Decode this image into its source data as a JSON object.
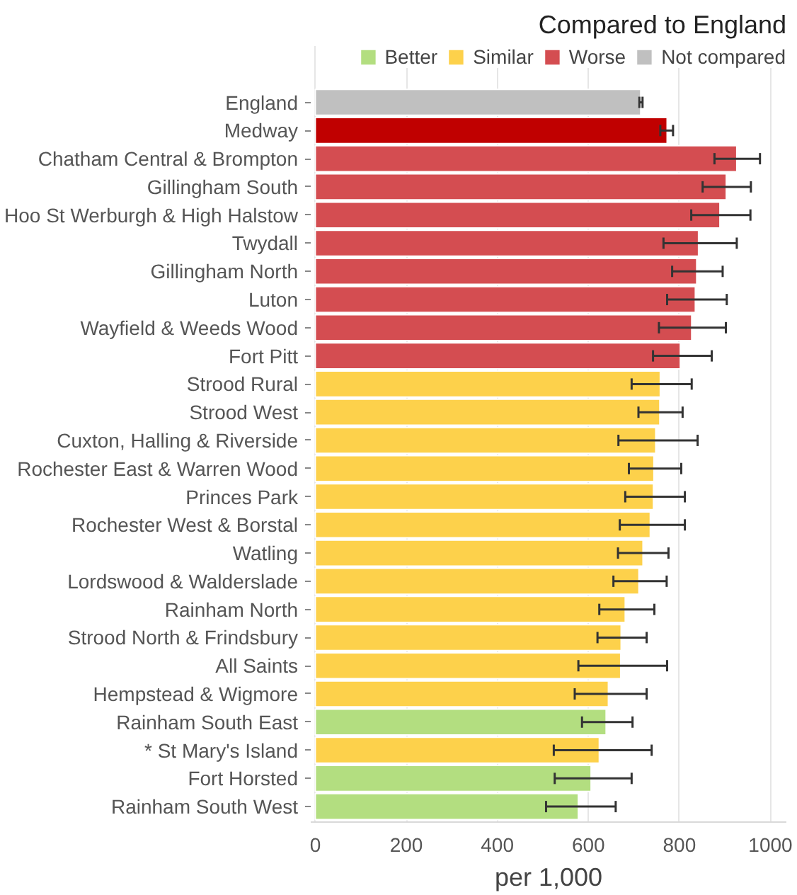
{
  "chart_data": {
    "type": "bar",
    "orientation": "horizontal",
    "xlabel": "per 1,000",
    "legend_title": "Compared to England",
    "legend": "top right",
    "grid": "x",
    "xlim": [
      -10,
      1035
    ],
    "xticks": [
      0,
      200,
      400,
      600,
      800,
      {
        "value": 1000,
        "label": "1000"
      }
    ],
    "categories": [
      "England",
      "Medway",
      "Chatham Central & Brompton",
      "Gillingham South",
      "Hoo St Werburgh & High Halstow",
      "Twydall",
      "Gillingham North",
      "Luton",
      "Wayfield & Weeds Wood",
      "Fort Pitt",
      "Strood Rural",
      "Strood West",
      "Cuxton, Halling & Riverside",
      "Rochester East & Warren Wood",
      "Princes Park",
      "Rochester West & Borstal",
      "Watling",
      "Lordswood & Walderslade",
      "Rainham North",
      "Strood North & Frindsbury",
      "All Saints",
      "Hempstead & Wigmore",
      "Rainham South East",
      "* St Mary's Island",
      "Fort Horsted",
      "Rainham South West"
    ],
    "series": [
      {
        "name": "Better",
        "color": "#b3de80",
        "values": [
          null,
          null,
          null,
          null,
          null,
          null,
          null,
          null,
          null,
          null,
          null,
          null,
          null,
          null,
          null,
          null,
          null,
          null,
          null,
          null,
          null,
          null,
          639,
          null,
          606,
          578
        ],
        "errors": [
          null,
          null,
          null,
          null,
          null,
          null,
          null,
          null,
          null,
          null,
          null,
          null,
          null,
          null,
          null,
          null,
          null,
          null,
          null,
          null,
          null,
          null,
          [
            586,
            697
          ],
          null,
          [
            526,
            695
          ],
          [
            507,
            660
          ]
        ]
      },
      {
        "name": "Similar",
        "color": "#fdd14b",
        "values": [
          null,
          null,
          null,
          null,
          null,
          null,
          null,
          null,
          null,
          null,
          758,
          757,
          748,
          744,
          743,
          736,
          720,
          711,
          681,
          672,
          671,
          644,
          null,
          624,
          null,
          null
        ],
        "errors": [
          null,
          null,
          null,
          null,
          null,
          null,
          null,
          null,
          null,
          null,
          [
            695,
            827
          ],
          [
            710,
            807
          ],
          [
            666,
            840
          ],
          [
            689,
            804
          ],
          [
            681,
            812
          ],
          [
            669,
            812
          ],
          [
            665,
            776
          ],
          [
            655,
            772
          ],
          [
            624,
            745
          ],
          [
            620,
            728
          ],
          [
            578,
            773
          ],
          [
            570,
            728
          ],
          null,
          [
            524,
            739
          ],
          null,
          null
        ]
      },
      {
        "name": "Worse",
        "color": "#d44d51",
        "values": [
          null,
          null,
          926,
          903,
          889,
          842,
          838,
          835,
          827,
          802,
          null,
          null,
          null,
          null,
          null,
          null,
          null,
          null,
          null,
          null,
          null,
          null,
          null,
          null,
          null,
          null
        ],
        "errors": [
          null,
          null,
          [
            877,
            977
          ],
          [
            851,
            957
          ],
          [
            826,
            956
          ],
          [
            765,
            926
          ],
          [
            784,
            895
          ],
          [
            773,
            904
          ],
          [
            755,
            902
          ],
          [
            742,
            871
          ],
          null,
          null,
          null,
          null,
          null,
          null,
          null,
          null,
          null,
          null,
          null,
          null,
          null,
          null,
          null,
          null
        ]
      },
      {
        "name": "Not compared",
        "color": "#c0c0c0",
        "values": [
          715,
          null,
          null,
          null,
          null,
          null,
          null,
          null,
          null,
          null,
          null,
          null,
          null,
          null,
          null,
          null,
          null,
          null,
          null,
          null,
          null,
          null,
          null,
          null,
          null,
          null
        ],
        "errors": [
          [
            712,
            719
          ],
          null,
          null,
          null,
          null,
          null,
          null,
          null,
          null,
          null,
          null,
          null,
          null,
          null,
          null,
          null,
          null,
          null,
          null,
          null,
          null,
          null,
          null,
          null,
          null,
          null
        ]
      },
      {
        "color": "#c00000",
        "values": [
          null,
          773,
          null,
          null,
          null,
          null,
          null,
          null,
          null,
          null,
          null,
          null,
          null,
          null,
          null,
          null,
          null,
          null,
          null,
          null,
          null,
          null,
          null,
          null,
          null,
          null
        ],
        "errors": [
          null,
          [
            758,
            786
          ],
          null,
          null,
          null,
          null,
          null,
          null,
          null,
          null,
          null,
          null,
          null,
          null,
          null,
          null,
          null,
          null,
          null,
          null,
          null,
          null,
          null,
          null,
          null,
          null
        ]
      }
    ]
  }
}
